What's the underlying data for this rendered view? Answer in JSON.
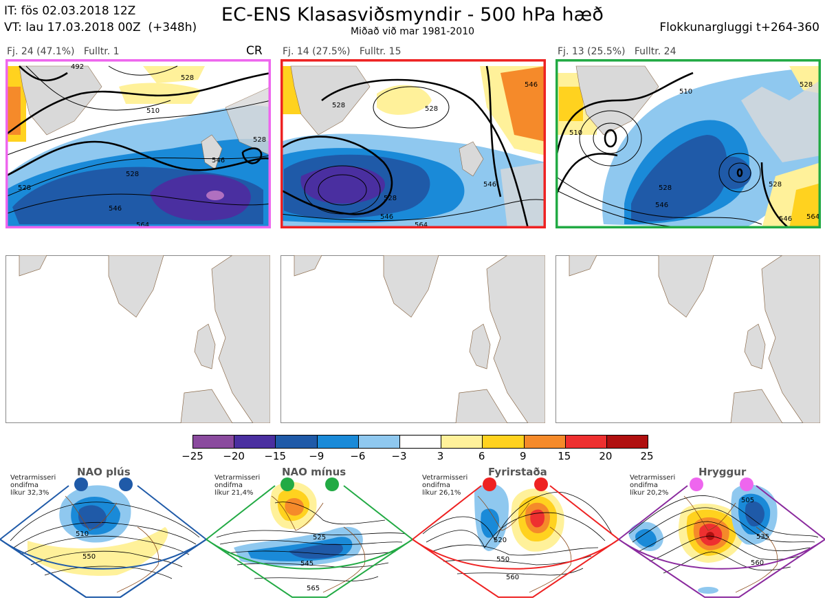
{
  "header": {
    "it_line": "IT: fös 02.03.2018 12Z",
    "vt_line": "VT: lau 17.03.2018 00Z  (+348h)",
    "title": "EC-ENS Klasasviðsmyndir - 500 hPa hæð",
    "subtitle": "Miðað við mar 1981-2010",
    "window": "Flokkunargluggi t+264-360"
  },
  "panels": [
    {
      "label": "Fj. 24 (47.1%)   Fulltr. 1",
      "tag": "CR",
      "border": "#ee66ee",
      "contours": [
        "492",
        "510",
        "528",
        "528",
        "528",
        "546",
        "546",
        "528",
        "564"
      ]
    },
    {
      "label": "Fj. 14 (27.5%)   Fulltr. 15",
      "tag": "",
      "border": "#ee2222",
      "contours": [
        "528",
        "528",
        "546",
        "528",
        "546",
        "564",
        "546"
      ]
    },
    {
      "label": "Fj. 13 (25.5%)   Fulltr. 24",
      "tag": "",
      "border": "#22aa44",
      "contours": [
        "510",
        "510",
        "528",
        "528",
        "546",
        "528",
        "546",
        "564"
      ]
    }
  ],
  "colorbar": {
    "ticks": [
      "−25",
      "−20",
      "−15",
      "−9",
      "−6",
      "−3",
      "3",
      "6",
      "9",
      "15",
      "20",
      "25"
    ],
    "colors": [
      "#8a4a9e",
      "#4a2fa0",
      "#1f5aa8",
      "#1a8ad8",
      "#8fc8ef",
      "#ffffff",
      "#fff19a",
      "#ffd21f",
      "#f58a2a",
      "#ee3030",
      "#b01010"
    ]
  },
  "regimes": [
    {
      "name": "NAO plús",
      "info": "Vetrarmisseri\nondifma\nlíkur 32,3%",
      "color": "#1f5aa8",
      "labels": [
        "510",
        "550"
      ]
    },
    {
      "name": "NAO mínus",
      "info": "Vetrarmisseri\nondifma\nlíkur 21,4%",
      "color": "#22aa44",
      "labels": [
        "525",
        "545",
        "565"
      ]
    },
    {
      "name": "Fyrirstaða",
      "info": "Vetrarmisseri\nondifma\nlíkur 26,1%",
      "color": "#ee2222",
      "labels": [
        "520",
        "550",
        "560"
      ]
    },
    {
      "name": "Hryggur",
      "info": "Vetrarmisseri\nondifma\nlíkur 20,2%",
      "color": "#ee66ee",
      "labels": [
        "505",
        "535",
        "560"
      ]
    }
  ]
}
